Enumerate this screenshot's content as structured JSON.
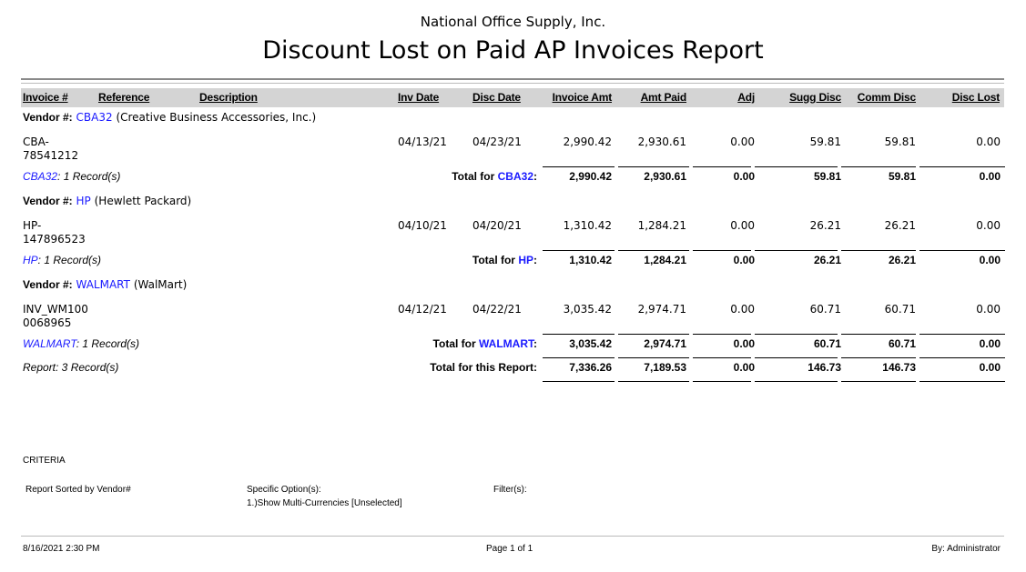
{
  "company": "National Office Supply, Inc.",
  "title": "Discount Lost on Paid AP Invoices Report",
  "columns": {
    "invoice": "Invoice #",
    "reference": "Reference",
    "description": "Description",
    "inv_date": "Inv Date",
    "disc_date": "Disc Date",
    "invoice_amt": "Invoice Amt",
    "amt_paid": "Amt Paid",
    "adj": "Adj",
    "sugg_disc": "Sugg Disc",
    "comm_disc": "Comm Disc",
    "disc_lost": "Disc Lost"
  },
  "vendor_label": "Vendor #:",
  "total_for_label": "Total for",
  "groups": [
    {
      "vendor_id": "CBA32",
      "vendor_name": "(Creative Business Accessories, Inc.)",
      "rows": [
        {
          "invoice_line1": "CBA-",
          "invoice_line2": "78541212",
          "reference": "",
          "description": "",
          "inv_date": "04/13/21",
          "disc_date": "04/23/21",
          "invoice_amt": "2,990.42",
          "amt_paid": "2,930.61",
          "adj": "0.00",
          "sugg_disc": "59.81",
          "comm_disc": "59.81",
          "disc_lost": "0.00"
        }
      ],
      "records": ": 1 Record(s)",
      "totals": {
        "invoice_amt": "2,990.42",
        "amt_paid": "2,930.61",
        "adj": "0.00",
        "sugg_disc": "59.81",
        "comm_disc": "59.81",
        "disc_lost": "0.00"
      }
    },
    {
      "vendor_id": "HP",
      "vendor_name": "(Hewlett Packard)",
      "rows": [
        {
          "invoice_line1": "HP-",
          "invoice_line2": "147896523",
          "reference": "",
          "description": "",
          "inv_date": "04/10/21",
          "disc_date": "04/20/21",
          "invoice_amt": "1,310.42",
          "amt_paid": "1,284.21",
          "adj": "0.00",
          "sugg_disc": "26.21",
          "comm_disc": "26.21",
          "disc_lost": "0.00"
        }
      ],
      "records": ": 1 Record(s)",
      "totals": {
        "invoice_amt": "1,310.42",
        "amt_paid": "1,284.21",
        "adj": "0.00",
        "sugg_disc": "26.21",
        "comm_disc": "26.21",
        "disc_lost": "0.00"
      }
    },
    {
      "vendor_id": "WALMART",
      "vendor_name": "(WalMart)",
      "rows": [
        {
          "invoice_line1": "INV_WM100",
          "invoice_line2": "0068965",
          "reference": "",
          "description": "",
          "inv_date": "04/12/21",
          "disc_date": "04/22/21",
          "invoice_amt": "3,035.42",
          "amt_paid": "2,974.71",
          "adj": "0.00",
          "sugg_disc": "60.71",
          "comm_disc": "60.71",
          "disc_lost": "0.00"
        }
      ],
      "records": ": 1 Record(s)",
      "totals": {
        "invoice_amt": "3,035.42",
        "amt_paid": "2,974.71",
        "adj": "0.00",
        "sugg_disc": "60.71",
        "comm_disc": "60.71",
        "disc_lost": "0.00"
      }
    }
  ],
  "report_total": {
    "records": "Report: 3 Record(s)",
    "label": "Total for this Report:",
    "invoice_amt": "7,336.26",
    "amt_paid": "7,189.53",
    "adj": "0.00",
    "sugg_disc": "146.73",
    "comm_disc": "146.73",
    "disc_lost": "0.00"
  },
  "criteria": {
    "heading": "CRITERIA",
    "sorted": "Report Sorted by Vendor#",
    "options_label": "Specific Option(s):",
    "options": [
      "1.)Show Multi-Currencies [Unselected]"
    ],
    "filters_label": "Filter(s):"
  },
  "footer": {
    "datetime": "8/16/2021 2:30 PM",
    "page": "Page 1 of 1",
    "by": "By: Administrator"
  },
  "colors": {
    "link": "#1a1aff",
    "header_band": "#d4d4d4"
  }
}
